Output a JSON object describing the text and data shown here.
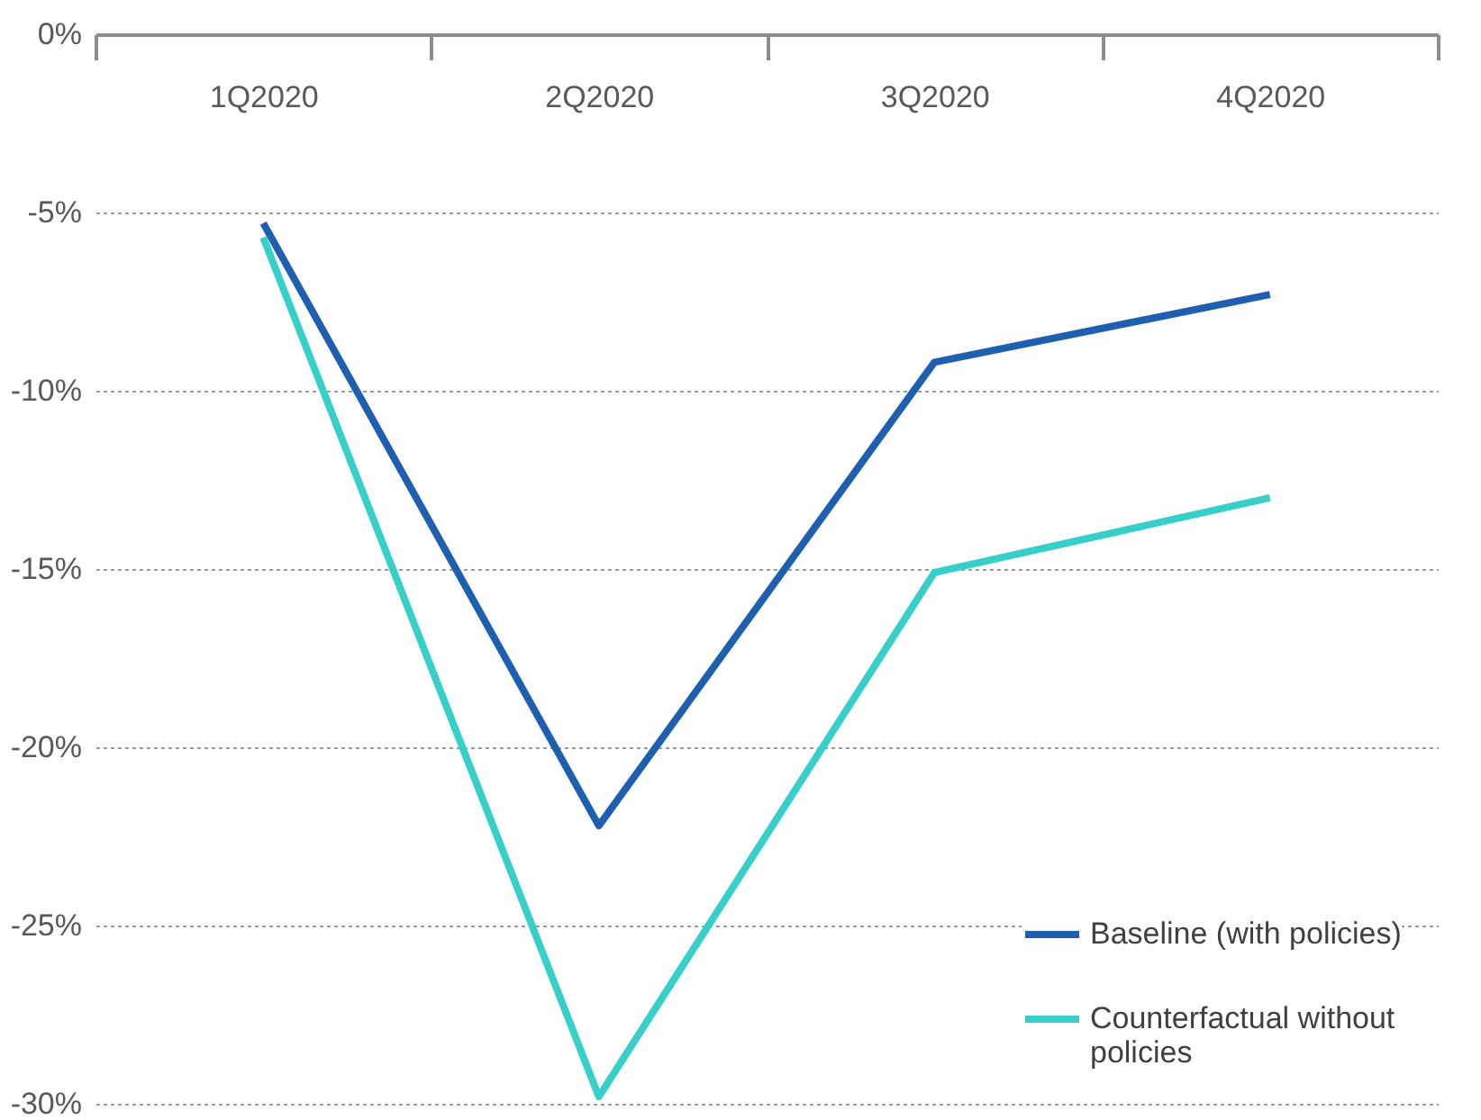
{
  "chart_data": {
    "type": "line",
    "categories": [
      "1Q2020",
      "2Q2020",
      "3Q2020",
      "4Q2020"
    ],
    "series": [
      {
        "name": "Baseline (with policies)",
        "color": "#1f5fb0",
        "values": [
          -5.3,
          -22.2,
          -9.2,
          -7.3
        ]
      },
      {
        "name": "Counterfactual without policies",
        "color": "#36cfc9",
        "values": [
          -5.7,
          -29.8,
          -15.1,
          -13.0
        ]
      }
    ],
    "ylim": [
      -30,
      0
    ],
    "yticks": [
      {
        "value": -30,
        "label": "-30%"
      },
      {
        "value": -25,
        "label": "-25%"
      },
      {
        "value": -20,
        "label": "-20%"
      },
      {
        "value": -15,
        "label": "-15%"
      },
      {
        "value": -10,
        "label": "-10%"
      },
      {
        "value": -5,
        "label": "-5%"
      },
      {
        "value": 0,
        "label": "0%"
      }
    ],
    "grid": "y",
    "legend": "bottom right",
    "line_style": "solid",
    "marker": "none"
  }
}
